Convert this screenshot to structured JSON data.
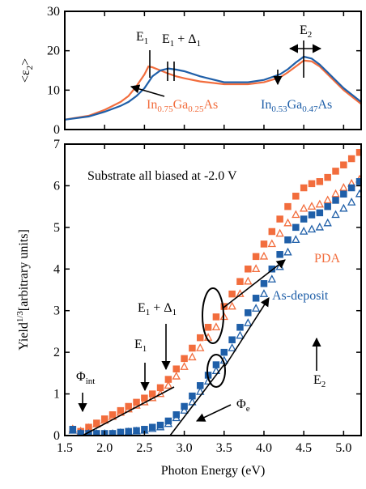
{
  "chart_data": [
    {
      "type": "line",
      "ylabel": {
        "parts": [
          "<ε",
          "2",
          ">"
        ],
        "script": "sub"
      },
      "xlim": [
        1.5,
        5.22
      ],
      "xticks": [
        1.5,
        2.0,
        2.5,
        3.0,
        3.5,
        4.0,
        4.5,
        5.0
      ],
      "ylim": [
        0,
        30
      ],
      "yticks": [
        0,
        10,
        20,
        30
      ],
      "x": [
        1.5,
        1.8,
        2.0,
        2.2,
        2.3,
        2.4,
        2.5,
        2.55,
        2.6,
        2.7,
        2.8,
        2.9,
        3.0,
        3.2,
        3.5,
        3.8,
        4.0,
        4.2,
        4.3,
        4.4,
        4.5,
        4.6,
        4.7,
        4.8,
        5.0,
        5.22
      ],
      "series": [
        {
          "color": "#f26d3d",
          "values": [
            2.5,
            3.5,
            5,
            7,
            8.5,
            11,
            14,
            16,
            15.8,
            15,
            14.2,
            13.5,
            13,
            12.2,
            11.5,
            11.5,
            12,
            13.2,
            14.5,
            16,
            17.5,
            17.3,
            16,
            14,
            10,
            6.5
          ]
        },
        {
          "color": "#1f5fa8",
          "values": [
            2.5,
            3.3,
            4.5,
            6,
            7,
            8.5,
            10.5,
            12,
            13.5,
            15,
            15.5,
            15.2,
            14.8,
            13.5,
            12,
            12,
            12.6,
            14,
            15.3,
            17,
            18.5,
            18,
            16.5,
            14.5,
            10.5,
            7
          ]
        }
      ],
      "annotations": [
        {
          "parts": [
            "E",
            "1"
          ],
          "script": "sub",
          "color": "#000000"
        },
        {
          "parts": [
            "E",
            "1",
            " + Δ",
            "1"
          ],
          "script": "sub",
          "color": "#000000"
        },
        {
          "parts": [
            "E",
            "2"
          ],
          "script": "sub",
          "color": "#000000"
        },
        {
          "parts": [
            "In",
            "0.75",
            "Ga",
            "0.25",
            "As"
          ],
          "script": "sub",
          "color": "#f26d3d"
        },
        {
          "parts": [
            "In",
            "0.53",
            "Ga",
            "0.47",
            "As"
          ],
          "script": "sub",
          "color": "#1f5fa8"
        }
      ]
    },
    {
      "type": "scatter",
      "xlabel": "Photon Energy (eV)",
      "ylabel": {
        "parts": [
          "Yield",
          "1/3",
          "[arbitrary units]"
        ],
        "script": "super"
      },
      "xlim": [
        1.5,
        5.22
      ],
      "xticks": [
        1.5,
        {
          "value": 2.0,
          "label": "2.0"
        },
        2.5,
        {
          "value": 3.0,
          "label": "3.0"
        },
        3.5,
        {
          "value": 4.0,
          "label": "4.0"
        },
        4.5,
        {
          "value": 5.0,
          "label": "5.0"
        }
      ],
      "ylim": [
        0,
        7
      ],
      "yticks": [
        0,
        1,
        2,
        3,
        4,
        5,
        6,
        7
      ],
      "x": [
        1.6,
        1.7,
        1.8,
        1.9,
        2.0,
        2.1,
        2.2,
        2.3,
        2.4,
        2.5,
        2.6,
        2.7,
        2.8,
        2.9,
        3.0,
        3.1,
        3.2,
        3.3,
        3.4,
        3.5,
        3.6,
        3.7,
        3.8,
        3.9,
        4.0,
        4.1,
        4.2,
        4.3,
        4.4,
        4.5,
        4.6,
        4.7,
        4.8,
        4.9,
        5.0,
        5.1,
        5.2
      ],
      "series": [
        {
          "color": "#f26d3d",
          "marker": "square",
          "filled": true,
          "values": [
            0.15,
            0.1,
            0.2,
            0.3,
            0.4,
            0.5,
            0.6,
            0.7,
            0.8,
            0.9,
            1.0,
            1.15,
            1.35,
            1.6,
            1.85,
            2.1,
            2.35,
            2.6,
            2.85,
            3.1,
            3.4,
            3.7,
            4.0,
            4.3,
            4.6,
            4.9,
            5.2,
            5.5,
            5.75,
            5.95,
            6.05,
            6.1,
            6.2,
            6.35,
            6.5,
            6.65,
            6.8
          ]
        },
        {
          "color": "#f26d3d",
          "marker": "triangle",
          "filled": false,
          "values": [
            0.15,
            0.1,
            0.18,
            0.27,
            0.36,
            0.45,
            0.55,
            0.63,
            0.72,
            0.8,
            0.9,
            1.0,
            1.2,
            1.42,
            1.65,
            1.88,
            2.1,
            2.35,
            2.6,
            2.85,
            3.1,
            3.4,
            3.7,
            4.0,
            4.3,
            4.6,
            4.85,
            5.1,
            5.3,
            5.45,
            5.5,
            5.55,
            5.65,
            5.8,
            5.95,
            6.05,
            6.15
          ]
        },
        {
          "color": "#1f5fa8",
          "marker": "square",
          "filled": true,
          "values": [
            0.15,
            0.05,
            0.05,
            0.05,
            0.05,
            0.05,
            0.08,
            0.1,
            0.12,
            0.15,
            0.2,
            0.25,
            0.35,
            0.5,
            0.7,
            0.95,
            1.2,
            1.45,
            1.7,
            2.0,
            2.3,
            2.6,
            2.95,
            3.3,
            3.65,
            4.0,
            4.35,
            4.7,
            5.0,
            5.2,
            5.3,
            5.35,
            5.5,
            5.65,
            5.8,
            5.95,
            6.1
          ]
        },
        {
          "color": "#1f5fa8",
          "marker": "triangle",
          "filled": false,
          "values": [
            0.12,
            0.05,
            0.04,
            0.04,
            0.04,
            0.04,
            0.06,
            0.08,
            0.1,
            0.12,
            0.16,
            0.2,
            0.28,
            0.42,
            0.6,
            0.8,
            1.05,
            1.3,
            1.55,
            1.8,
            2.1,
            2.4,
            2.7,
            3.05,
            3.4,
            3.75,
            4.05,
            4.4,
            4.7,
            4.9,
            4.95,
            5.0,
            5.1,
            5.3,
            5.45,
            5.6,
            5.8
          ]
        }
      ],
      "annotations": [
        {
          "parts": [
            "Substrate all biased at -2.0 V"
          ],
          "script": "sub",
          "color": "#000000"
        },
        {
          "parts": [
            "E",
            "1",
            " + Δ",
            "1"
          ],
          "script": "sub",
          "color": "#000000"
        },
        {
          "parts": [
            "E",
            "1"
          ],
          "script": "sub",
          "color": "#000000"
        },
        {
          "parts": [
            "Φ",
            "int"
          ],
          "script": "sub",
          "color": "#000000"
        },
        {
          "parts": [
            "E",
            "2"
          ],
          "script": "sub",
          "color": "#000000"
        },
        {
          "parts": [
            "PDA"
          ],
          "script": "sub",
          "color": "#f26d3d"
        },
        {
          "parts": [
            "As-deposit"
          ],
          "script": "sub",
          "color": "#1f5fa8"
        },
        {
          "parts": [
            "Φ",
            "e"
          ],
          "script": "sub",
          "color": "#000000"
        }
      ]
    }
  ]
}
